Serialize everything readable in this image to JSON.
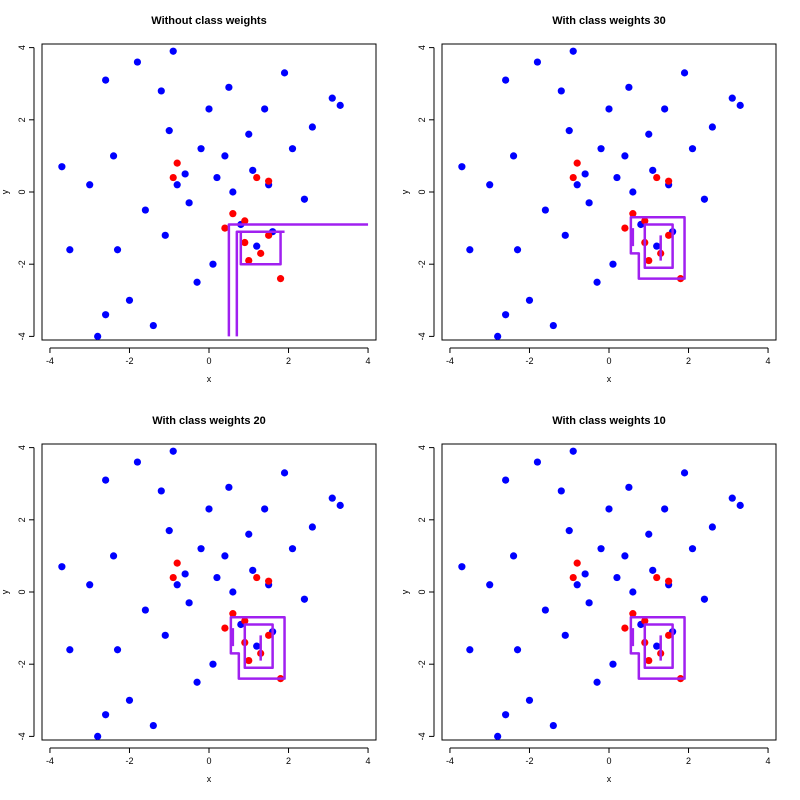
{
  "colors": {
    "majority": "#0000ff",
    "minority": "#ff0000",
    "boundary": "#a020f0"
  },
  "chart_data": [
    {
      "type": "scatter",
      "title": "Without class weights",
      "xlabel": "x",
      "ylabel": "y",
      "xlim": [
        -4.2,
        4.2
      ],
      "ylim": [
        -4.1,
        4.1
      ],
      "xticks": [
        "-4",
        "-2",
        "0",
        "2",
        "4"
      ],
      "yticks": [
        "-4",
        "-2",
        "0",
        "2",
        "4"
      ],
      "grid": false,
      "series": [
        {
          "class": "majority",
          "color": "#0000ff",
          "points": [
            [
              -3.7,
              0.7
            ],
            [
              -3.5,
              -1.6
            ],
            [
              -2.8,
              -4.0
            ],
            [
              -2.6,
              -3.4
            ],
            [
              -2.6,
              3.1
            ],
            [
              -2.3,
              -1.6
            ],
            [
              -2.0,
              -3.0
            ],
            [
              -1.8,
              3.6
            ],
            [
              -1.4,
              -3.7
            ],
            [
              -1.2,
              2.8
            ],
            [
              -1.0,
              1.7
            ],
            [
              -0.9,
              3.9
            ],
            [
              -0.6,
              0.5
            ],
            [
              -0.3,
              -2.5
            ],
            [
              -0.2,
              1.2
            ],
            [
              0.0,
              2.3
            ],
            [
              0.1,
              -2.0
            ],
            [
              0.4,
              1.0
            ],
            [
              0.5,
              2.9
            ],
            [
              0.8,
              -0.9
            ],
            [
              1.0,
              1.6
            ],
            [
              1.2,
              -1.5
            ],
            [
              1.4,
              2.3
            ],
            [
              1.6,
              -1.1
            ],
            [
              1.9,
              3.3
            ],
            [
              2.1,
              1.2
            ],
            [
              2.4,
              -0.2
            ],
            [
              2.6,
              1.8
            ],
            [
              3.1,
              2.6
            ],
            [
              3.3,
              2.4
            ],
            [
              -3.0,
              0.2
            ],
            [
              -2.4,
              1.0
            ],
            [
              -1.6,
              -0.5
            ],
            [
              -1.1,
              -1.2
            ],
            [
              -0.8,
              0.2
            ],
            [
              -0.5,
              -0.3
            ],
            [
              0.2,
              0.4
            ],
            [
              0.6,
              0.0
            ],
            [
              1.1,
              0.6
            ],
            [
              1.5,
              0.2
            ]
          ]
        },
        {
          "class": "minority",
          "color": "#ff0000",
          "points": [
            [
              -0.8,
              0.8
            ],
            [
              -0.9,
              0.4
            ],
            [
              0.4,
              -1.0
            ],
            [
              0.6,
              -0.6
            ],
            [
              0.9,
              -1.4
            ],
            [
              1.0,
              -1.9
            ],
            [
              1.3,
              -1.7
            ],
            [
              1.5,
              -1.2
            ],
            [
              1.8,
              -2.4
            ],
            [
              1.2,
              0.4
            ],
            [
              1.5,
              0.3
            ],
            [
              0.9,
              -0.8
            ]
          ]
        }
      ]
    },
    {
      "type": "scatter",
      "title": "With class weights 30",
      "xlabel": "x",
      "ylabel": "y",
      "xlim": [
        -4.2,
        4.2
      ],
      "ylim": [
        -4.1,
        4.1
      ],
      "xticks": [
        "-4",
        "-2",
        "0",
        "2",
        "4"
      ],
      "yticks": [
        "-4",
        "-2",
        "0",
        "2",
        "4"
      ],
      "grid": false,
      "series": [
        {
          "class": "majority",
          "color": "#0000ff",
          "points": [
            [
              -3.7,
              0.7
            ],
            [
              -3.5,
              -1.6
            ],
            [
              -2.8,
              -4.0
            ],
            [
              -2.6,
              -3.4
            ],
            [
              -2.6,
              3.1
            ],
            [
              -2.3,
              -1.6
            ],
            [
              -2.0,
              -3.0
            ],
            [
              -1.8,
              3.6
            ],
            [
              -1.4,
              -3.7
            ],
            [
              -1.2,
              2.8
            ],
            [
              -1.0,
              1.7
            ],
            [
              -0.9,
              3.9
            ],
            [
              -0.6,
              0.5
            ],
            [
              -0.3,
              -2.5
            ],
            [
              -0.2,
              1.2
            ],
            [
              0.0,
              2.3
            ],
            [
              0.1,
              -2.0
            ],
            [
              0.4,
              1.0
            ],
            [
              0.5,
              2.9
            ],
            [
              0.8,
              -0.9
            ],
            [
              1.0,
              1.6
            ],
            [
              1.2,
              -1.5
            ],
            [
              1.4,
              2.3
            ],
            [
              1.6,
              -1.1
            ],
            [
              1.9,
              3.3
            ],
            [
              2.1,
              1.2
            ],
            [
              2.4,
              -0.2
            ],
            [
              2.6,
              1.8
            ],
            [
              3.1,
              2.6
            ],
            [
              3.3,
              2.4
            ],
            [
              -3.0,
              0.2
            ],
            [
              -2.4,
              1.0
            ],
            [
              -1.6,
              -0.5
            ],
            [
              -1.1,
              -1.2
            ],
            [
              -0.8,
              0.2
            ],
            [
              -0.5,
              -0.3
            ],
            [
              0.2,
              0.4
            ],
            [
              0.6,
              0.0
            ],
            [
              1.1,
              0.6
            ],
            [
              1.5,
              0.2
            ]
          ]
        },
        {
          "class": "minority",
          "color": "#ff0000",
          "points": [
            [
              -0.8,
              0.8
            ],
            [
              -0.9,
              0.4
            ],
            [
              0.4,
              -1.0
            ],
            [
              0.6,
              -0.6
            ],
            [
              0.9,
              -1.4
            ],
            [
              1.0,
              -1.9
            ],
            [
              1.3,
              -1.7
            ],
            [
              1.5,
              -1.2
            ],
            [
              1.8,
              -2.4
            ],
            [
              1.2,
              0.4
            ],
            [
              1.5,
              0.3
            ],
            [
              0.9,
              -0.8
            ]
          ]
        }
      ]
    },
    {
      "type": "scatter",
      "title": "With class weights 20",
      "xlabel": "x",
      "ylabel": "y",
      "xlim": [
        -4.2,
        4.2
      ],
      "ylim": [
        -4.1,
        4.1
      ],
      "xticks": [
        "-4",
        "-2",
        "0",
        "2",
        "4"
      ],
      "yticks": [
        "-4",
        "-2",
        "0",
        "2",
        "4"
      ],
      "grid": false,
      "series": [
        {
          "class": "majority",
          "color": "#0000ff",
          "points": [
            [
              -3.7,
              0.7
            ],
            [
              -3.5,
              -1.6
            ],
            [
              -2.8,
              -4.0
            ],
            [
              -2.6,
              -3.4
            ],
            [
              -2.6,
              3.1
            ],
            [
              -2.3,
              -1.6
            ],
            [
              -2.0,
              -3.0
            ],
            [
              -1.8,
              3.6
            ],
            [
              -1.4,
              -3.7
            ],
            [
              -1.2,
              2.8
            ],
            [
              -1.0,
              1.7
            ],
            [
              -0.9,
              3.9
            ],
            [
              -0.6,
              0.5
            ],
            [
              -0.3,
              -2.5
            ],
            [
              -0.2,
              1.2
            ],
            [
              0.0,
              2.3
            ],
            [
              0.1,
              -2.0
            ],
            [
              0.4,
              1.0
            ],
            [
              0.5,
              2.9
            ],
            [
              0.8,
              -0.9
            ],
            [
              1.0,
              1.6
            ],
            [
              1.2,
              -1.5
            ],
            [
              1.4,
              2.3
            ],
            [
              1.6,
              -1.1
            ],
            [
              1.9,
              3.3
            ],
            [
              2.1,
              1.2
            ],
            [
              2.4,
              -0.2
            ],
            [
              2.6,
              1.8
            ],
            [
              3.1,
              2.6
            ],
            [
              3.3,
              2.4
            ],
            [
              -3.0,
              0.2
            ],
            [
              -2.4,
              1.0
            ],
            [
              -1.6,
              -0.5
            ],
            [
              -1.1,
              -1.2
            ],
            [
              -0.8,
              0.2
            ],
            [
              -0.5,
              -0.3
            ],
            [
              0.2,
              0.4
            ],
            [
              0.6,
              0.0
            ],
            [
              1.1,
              0.6
            ],
            [
              1.5,
              0.2
            ]
          ]
        },
        {
          "class": "minority",
          "color": "#ff0000",
          "points": [
            [
              -0.8,
              0.8
            ],
            [
              -0.9,
              0.4
            ],
            [
              0.4,
              -1.0
            ],
            [
              0.6,
              -0.6
            ],
            [
              0.9,
              -1.4
            ],
            [
              1.0,
              -1.9
            ],
            [
              1.3,
              -1.7
            ],
            [
              1.5,
              -1.2
            ],
            [
              1.8,
              -2.4
            ],
            [
              1.2,
              0.4
            ],
            [
              1.5,
              0.3
            ],
            [
              0.9,
              -0.8
            ]
          ]
        }
      ]
    },
    {
      "type": "scatter",
      "title": "With class weights 10",
      "xlabel": "x",
      "ylabel": "y",
      "xlim": [
        -4.2,
        4.2
      ],
      "ylim": [
        -4.1,
        4.1
      ],
      "xticks": [
        "-4",
        "-2",
        "0",
        "2",
        "4"
      ],
      "yticks": [
        "-4",
        "-2",
        "0",
        "2",
        "4"
      ],
      "grid": false,
      "series": [
        {
          "class": "majority",
          "color": "#0000ff",
          "points": [
            [
              -3.7,
              0.7
            ],
            [
              -3.5,
              -1.6
            ],
            [
              -2.8,
              -4.0
            ],
            [
              -2.6,
              -3.4
            ],
            [
              -2.6,
              3.1
            ],
            [
              -2.3,
              -1.6
            ],
            [
              -2.0,
              -3.0
            ],
            [
              -1.8,
              3.6
            ],
            [
              -1.4,
              -3.7
            ],
            [
              -1.2,
              2.8
            ],
            [
              -1.0,
              1.7
            ],
            [
              -0.9,
              3.9
            ],
            [
              -0.6,
              0.5
            ],
            [
              -0.3,
              -2.5
            ],
            [
              -0.2,
              1.2
            ],
            [
              0.0,
              2.3
            ],
            [
              0.1,
              -2.0
            ],
            [
              0.4,
              1.0
            ],
            [
              0.5,
              2.9
            ],
            [
              0.8,
              -0.9
            ],
            [
              1.0,
              1.6
            ],
            [
              1.2,
              -1.5
            ],
            [
              1.4,
              2.3
            ],
            [
              1.6,
              -1.1
            ],
            [
              1.9,
              3.3
            ],
            [
              2.1,
              1.2
            ],
            [
              2.4,
              -0.2
            ],
            [
              2.6,
              1.8
            ],
            [
              3.1,
              2.6
            ],
            [
              3.3,
              2.4
            ],
            [
              -3.0,
              0.2
            ],
            [
              -2.4,
              1.0
            ],
            [
              -1.6,
              -0.5
            ],
            [
              -1.1,
              -1.2
            ],
            [
              -0.8,
              0.2
            ],
            [
              -0.5,
              -0.3
            ],
            [
              0.2,
              0.4
            ],
            [
              0.6,
              0.0
            ],
            [
              1.1,
              0.6
            ],
            [
              1.5,
              0.2
            ]
          ]
        },
        {
          "class": "minority",
          "color": "#ff0000",
          "points": [
            [
              -0.8,
              0.8
            ],
            [
              -0.9,
              0.4
            ],
            [
              0.4,
              -1.0
            ],
            [
              0.6,
              -0.6
            ],
            [
              0.9,
              -1.4
            ],
            [
              1.0,
              -1.9
            ],
            [
              1.3,
              -1.7
            ],
            [
              1.5,
              -1.2
            ],
            [
              1.8,
              -2.4
            ],
            [
              1.2,
              0.4
            ],
            [
              1.5,
              0.3
            ],
            [
              0.9,
              -0.8
            ]
          ]
        }
      ]
    }
  ]
}
